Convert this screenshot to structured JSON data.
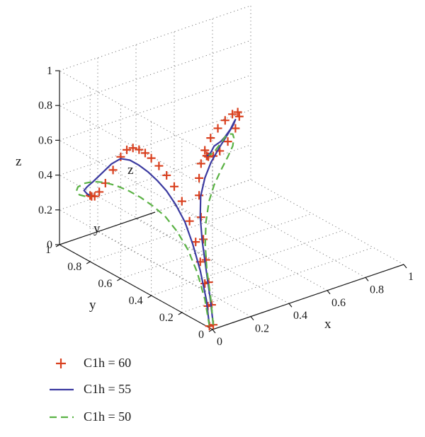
{
  "chart_data": {
    "type": "line",
    "projection": "3d",
    "xlabel": "x",
    "ylabel": "y",
    "zlabel": "z",
    "xlim": [
      0,
      1
    ],
    "ylim": [
      0,
      1
    ],
    "zlim": [
      0,
      1
    ],
    "x_ticks": [
      "0",
      "0.2",
      "0.4",
      "0.6",
      "0.8",
      "1"
    ],
    "y_ticks": [
      "0",
      "0.2",
      "0.4",
      "0.6",
      "0.8",
      "1"
    ],
    "z_ticks": [
      "0",
      "0.2",
      "0.4",
      "0.6",
      "0.8",
      "1"
    ],
    "grid": true,
    "legend_position": "bottom-left",
    "projection_labels": {
      "z": "z",
      "y": "y"
    },
    "series": [
      {
        "name": "C1h = 60",
        "style": "markers",
        "marker": "+",
        "color": "#d9401f",
        "x": [
          0.02,
          0.02,
          0.02,
          0.03,
          0.04,
          0.06,
          0.09,
          0.13,
          0.18,
          0.24,
          0.31,
          0.38,
          0.45,
          0.52,
          0.58,
          0.62,
          0.64,
          0.64,
          0.63,
          0.62,
          0.61,
          0.61,
          0.61
        ],
        "y": [
          0.02,
          0.03,
          0.05,
          0.08,
          0.11,
          0.15,
          0.2,
          0.25,
          0.3,
          0.35,
          0.4,
          0.44,
          0.48,
          0.52,
          0.56,
          0.6,
          0.65,
          0.7,
          0.74,
          0.77,
          0.79,
          0.8,
          0.8
        ],
        "z": [
          0.01,
          0.12,
          0.24,
          0.35,
          0.45,
          0.55,
          0.64,
          0.7,
          0.74,
          0.77,
          0.79,
          0.8,
          0.8,
          0.79,
          0.76,
          0.7,
          0.6,
          0.5,
          0.43,
          0.39,
          0.38,
          0.38,
          0.38
        ]
      },
      {
        "name": "C1h = 55",
        "style": "solid",
        "color": "#3b3aa0",
        "x": [
          0.02,
          0.02,
          0.03,
          0.05,
          0.08,
          0.13,
          0.2,
          0.28,
          0.37,
          0.46,
          0.54,
          0.6,
          0.64,
          0.67,
          0.69,
          0.7,
          0.68,
          0.65,
          0.62,
          0.61
        ],
        "y": [
          0.02,
          0.04,
          0.08,
          0.13,
          0.18,
          0.24,
          0.3,
          0.36,
          0.42,
          0.48,
          0.54,
          0.6,
          0.66,
          0.72,
          0.78,
          0.82,
          0.84,
          0.82,
          0.8,
          0.8
        ],
        "z": [
          0.01,
          0.15,
          0.3,
          0.43,
          0.53,
          0.6,
          0.65,
          0.68,
          0.7,
          0.71,
          0.71,
          0.69,
          0.63,
          0.55,
          0.47,
          0.42,
          0.39,
          0.38,
          0.38,
          0.38
        ]
      },
      {
        "name": "C1h = 50",
        "style": "dashed",
        "color": "#5ab244",
        "x": [
          0.02,
          0.03,
          0.05,
          0.09,
          0.15,
          0.23,
          0.32,
          0.42,
          0.52,
          0.61,
          0.68,
          0.73,
          0.76,
          0.77,
          0.76,
          0.72,
          0.67,
          0.62
        ],
        "y": [
          0.02,
          0.05,
          0.1,
          0.16,
          0.23,
          0.31,
          0.39,
          0.47,
          0.55,
          0.63,
          0.71,
          0.78,
          0.84,
          0.88,
          0.89,
          0.87,
          0.83,
          0.8
        ],
        "z": [
          0.01,
          0.15,
          0.28,
          0.38,
          0.45,
          0.5,
          0.52,
          0.53,
          0.53,
          0.52,
          0.5,
          0.47,
          0.43,
          0.39,
          0.36,
          0.35,
          0.36,
          0.38
        ]
      }
    ]
  }
}
